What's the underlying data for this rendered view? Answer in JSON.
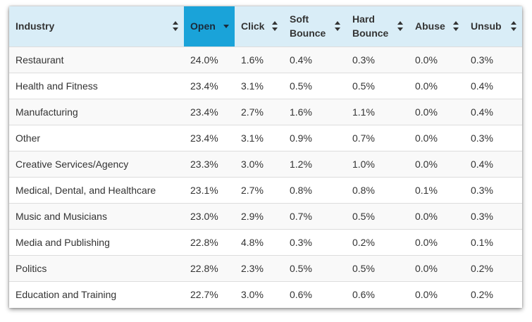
{
  "table": {
    "columns": [
      "Industry",
      "Open",
      "Click",
      "Soft Bounce",
      "Hard Bounce",
      "Abuse",
      "Unsub"
    ],
    "sorted_column": "Open",
    "sort_direction": "descending",
    "rows": [
      [
        "Restaurant",
        "24.0%",
        "1.6%",
        "0.4%",
        "0.3%",
        "0.0%",
        "0.3%"
      ],
      [
        "Health and Fitness",
        "23.4%",
        "3.1%",
        "0.5%",
        "0.5%",
        "0.0%",
        "0.4%"
      ],
      [
        "Manufacturing",
        "23.4%",
        "2.7%",
        "1.6%",
        "1.1%",
        "0.0%",
        "0.4%"
      ],
      [
        "Other",
        "23.4%",
        "3.1%",
        "0.9%",
        "0.7%",
        "0.0%",
        "0.3%"
      ],
      [
        "Creative Services/Agency",
        "23.3%",
        "3.0%",
        "1.2%",
        "1.0%",
        "0.0%",
        "0.4%"
      ],
      [
        "Medical, Dental, and Healthcare",
        "23.1%",
        "2.7%",
        "0.8%",
        "0.8%",
        "0.1%",
        "0.3%"
      ],
      [
        "Music and Musicians",
        "23.0%",
        "2.9%",
        "0.7%",
        "0.5%",
        "0.0%",
        "0.3%"
      ],
      [
        "Media and Publishing",
        "22.8%",
        "4.8%",
        "0.3%",
        "0.2%",
        "0.0%",
        "0.1%"
      ],
      [
        "Politics",
        "22.8%",
        "2.3%",
        "0.5%",
        "0.5%",
        "0.0%",
        "0.2%"
      ],
      [
        "Education and Training",
        "22.7%",
        "3.0%",
        "0.6%",
        "0.6%",
        "0.0%",
        "0.2%"
      ]
    ]
  },
  "colors": {
    "header_bg": "#d9edf7",
    "sorted_header_bg": "#1aa3d9",
    "row_stripe": "#f9f9f9",
    "text": "#333333"
  },
  "icons": {
    "sortable": "sort-both-icon",
    "sorted_desc": "sort-desc-icon"
  }
}
